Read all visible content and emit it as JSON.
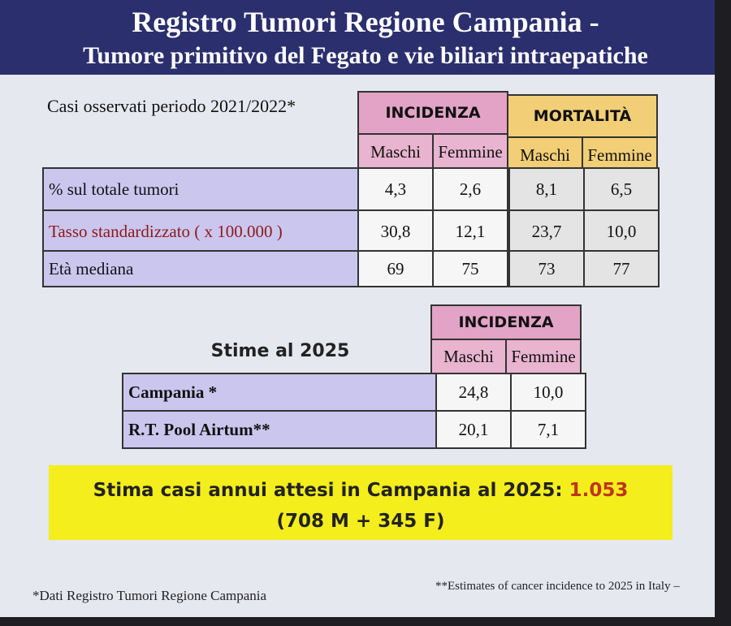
{
  "header": {
    "title": "Registro Tumori Regione Campania -",
    "subtitle": "Tumore primitivo del Fegato e vie biliari intraepatiche"
  },
  "table1": {
    "caption": "Casi osservati periodo 2021/2022*",
    "groups": [
      "INCIDENZA",
      "MORTALITÀ"
    ],
    "subheaders": [
      "Maschi",
      "Femmine",
      "Maschi",
      "Femmine"
    ],
    "rows": [
      [
        "% sul totale tumori",
        "4,3",
        "2,6",
        "8,1",
        "6,5"
      ],
      [
        "Tasso standardizzato ( x 100.000 )",
        "30,8",
        "12,1",
        "23,7",
        "10,0"
      ],
      [
        "Età mediana",
        "69",
        "75",
        "73",
        "77"
      ]
    ]
  },
  "table2": {
    "caption": "Stime al 2025",
    "group": "INCIDENZA",
    "subheaders": [
      "Maschi",
      "Femmine"
    ],
    "rows": [
      [
        "Campania *",
        "24,8",
        "10,0"
      ],
      [
        "R.T. Pool Airtum**",
        "20,1",
        "7,1"
      ]
    ]
  },
  "highlight": {
    "text": "Stima  casi annui attesi in Campania al  2025:",
    "value": "1.053",
    "detail": "(708 M + 345 F)"
  },
  "footnotes": [
    "*Dati Registro Tumori Regione Campania",
    "**Estimates of cancer incidence to 2025 in Italy –"
  ]
}
